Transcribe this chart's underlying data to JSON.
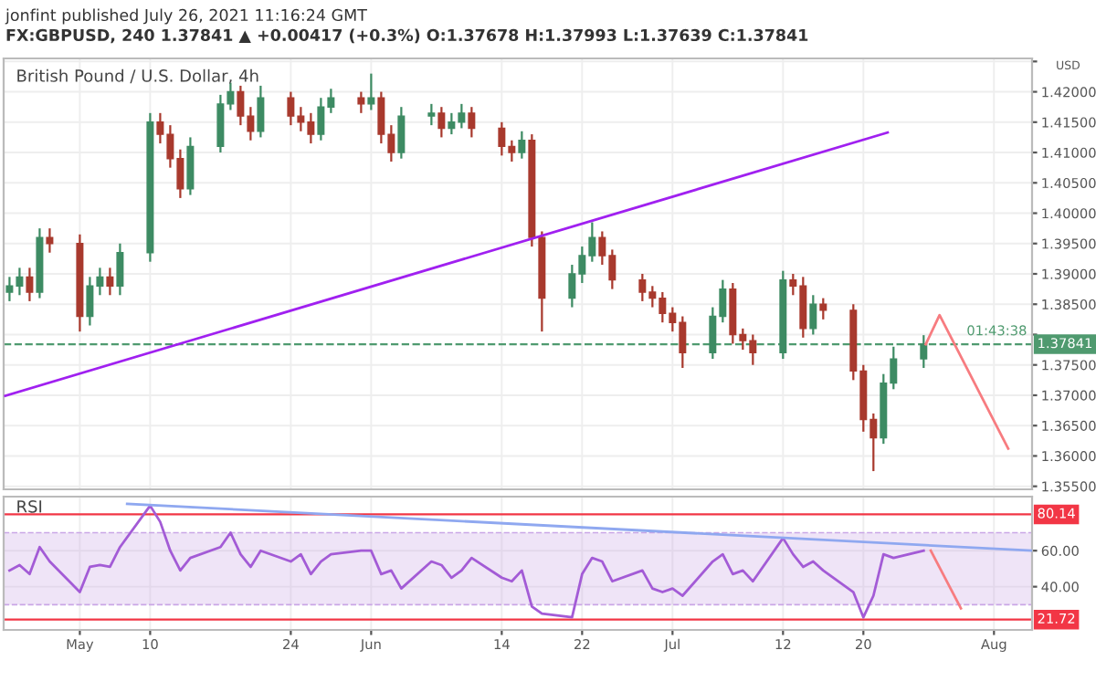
{
  "chart_data": [
    {
      "type": "candlestick",
      "title": "British Pound / U.S. Dollar, 4h",
      "annotations": [
        "jonfint published July 26, 2021 11:16:24 GMT",
        "FX:GBPUSD, 240 1.37841 ▲ +0.00417 (+0.3%) O:1.37678 H:1.37993 L:1.37639 C:1.37841",
        "USD",
        "01:43:38"
      ],
      "x": [
        "2021-04-26",
        "2021-04-27",
        "2021-04-28",
        "2021-04-29",
        "2021-04-30",
        "2021-05-03",
        "2021-05-04",
        "2021-05-05",
        "2021-05-06",
        "2021-05-07",
        "2021-05-10",
        "2021-05-11",
        "2021-05-12",
        "2021-05-13",
        "2021-05-14",
        "2021-05-17",
        "2021-05-18",
        "2021-05-19",
        "2021-05-20",
        "2021-05-21",
        "2021-05-24",
        "2021-05-25",
        "2021-05-26",
        "2021-05-27",
        "2021-05-28",
        "2021-05-31",
        "2021-06-01",
        "2021-06-02",
        "2021-06-03",
        "2021-06-04",
        "2021-06-07",
        "2021-06-08",
        "2021-06-09",
        "2021-06-10",
        "2021-06-11",
        "2021-06-14",
        "2021-06-15",
        "2021-06-16",
        "2021-06-17",
        "2021-06-18",
        "2021-06-21",
        "2021-06-22",
        "2021-06-23",
        "2021-06-24",
        "2021-06-25",
        "2021-06-28",
        "2021-06-29",
        "2021-06-30",
        "2021-07-01",
        "2021-07-02",
        "2021-07-05",
        "2021-07-06",
        "2021-07-07",
        "2021-07-08",
        "2021-07-09",
        "2021-07-12",
        "2021-07-13",
        "2021-07-14",
        "2021-07-15",
        "2021-07-16",
        "2021-07-19",
        "2021-07-20",
        "2021-07-21",
        "2021-07-22",
        "2021-07-23",
        "2021-07-26"
      ],
      "ohlc": [
        [
          1.387,
          1.3895,
          1.3855,
          1.388
        ],
        [
          1.388,
          1.391,
          1.3865,
          1.3895
        ],
        [
          1.3895,
          1.391,
          1.3855,
          1.387
        ],
        [
          1.387,
          1.3975,
          1.386,
          1.396
        ],
        [
          1.396,
          1.3975,
          1.3935,
          1.395
        ],
        [
          1.395,
          1.3965,
          1.3805,
          1.383
        ],
        [
          1.383,
          1.3895,
          1.3815,
          1.388
        ],
        [
          1.388,
          1.391,
          1.3865,
          1.3895
        ],
        [
          1.3895,
          1.391,
          1.3865,
          1.388
        ],
        [
          1.388,
          1.395,
          1.3865,
          1.3935
        ],
        [
          1.3935,
          1.4165,
          1.392,
          1.415
        ],
        [
          1.415,
          1.4165,
          1.4115,
          1.413
        ],
        [
          1.413,
          1.4145,
          1.4075,
          1.409
        ],
        [
          1.409,
          1.4105,
          1.4025,
          1.404
        ],
        [
          1.404,
          1.4125,
          1.403,
          1.411
        ],
        [
          1.411,
          1.4195,
          1.41,
          1.418
        ],
        [
          1.418,
          1.4215,
          1.417,
          1.42
        ],
        [
          1.42,
          1.421,
          1.4145,
          1.416
        ],
        [
          1.416,
          1.4175,
          1.412,
          1.4135
        ],
        [
          1.4135,
          1.421,
          1.4125,
          1.419
        ],
        [
          1.419,
          1.42,
          1.4145,
          1.416
        ],
        [
          1.416,
          1.4175,
          1.4135,
          1.415
        ],
        [
          1.415,
          1.4165,
          1.4115,
          1.413
        ],
        [
          1.413,
          1.419,
          1.412,
          1.4175
        ],
        [
          1.4175,
          1.4205,
          1.4165,
          1.419
        ],
        [
          1.419,
          1.42,
          1.4165,
          1.418
        ],
        [
          1.418,
          1.423,
          1.417,
          1.419
        ],
        [
          1.419,
          1.42,
          1.4115,
          1.413
        ],
        [
          1.413,
          1.4145,
          1.4085,
          1.41
        ],
        [
          1.41,
          1.4175,
          1.409,
          1.416
        ],
        [
          1.416,
          1.418,
          1.4145,
          1.4165
        ],
        [
          1.4165,
          1.4175,
          1.4125,
          1.414
        ],
        [
          1.414,
          1.4165,
          1.413,
          1.415
        ],
        [
          1.415,
          1.418,
          1.414,
          1.4165
        ],
        [
          1.4165,
          1.4175,
          1.4125,
          1.414
        ],
        [
          1.414,
          1.415,
          1.4095,
          1.411
        ],
        [
          1.411,
          1.412,
          1.4085,
          1.41
        ],
        [
          1.41,
          1.4135,
          1.409,
          1.412
        ],
        [
          1.412,
          1.413,
          1.3945,
          1.396
        ],
        [
          1.396,
          1.397,
          1.3805,
          1.386
        ],
        [
          1.386,
          1.3915,
          1.3845,
          1.39
        ],
        [
          1.39,
          1.3945,
          1.3885,
          1.393
        ],
        [
          1.393,
          1.3985,
          1.392,
          1.396
        ],
        [
          1.396,
          1.397,
          1.3915,
          1.393
        ],
        [
          1.393,
          1.394,
          1.3875,
          1.389
        ],
        [
          1.389,
          1.39,
          1.3855,
          1.387
        ],
        [
          1.387,
          1.388,
          1.3845,
          1.386
        ],
        [
          1.386,
          1.387,
          1.382,
          1.3835
        ],
        [
          1.3835,
          1.3845,
          1.3805,
          1.382
        ],
        [
          1.382,
          1.383,
          1.3745,
          1.377
        ],
        [
          1.377,
          1.3845,
          1.376,
          1.383
        ],
        [
          1.383,
          1.389,
          1.382,
          1.3875
        ],
        [
          1.3875,
          1.3885,
          1.3785,
          1.38
        ],
        [
          1.38,
          1.381,
          1.3775,
          1.379
        ],
        [
          1.379,
          1.38,
          1.375,
          1.377
        ],
        [
          1.377,
          1.3905,
          1.376,
          1.389
        ],
        [
          1.389,
          1.39,
          1.3865,
          1.388
        ],
        [
          1.388,
          1.3895,
          1.3795,
          1.381
        ],
        [
          1.381,
          1.3865,
          1.38,
          1.385
        ],
        [
          1.385,
          1.386,
          1.3825,
          1.384
        ],
        [
          1.384,
          1.385,
          1.3725,
          1.374
        ],
        [
          1.374,
          1.375,
          1.364,
          1.366
        ],
        [
          1.366,
          1.367,
          1.3575,
          1.363
        ],
        [
          1.363,
          1.3735,
          1.362,
          1.372
        ],
        [
          1.372,
          1.378,
          1.371,
          1.376
        ],
        [
          1.376,
          1.3799,
          1.3745,
          1.37841
        ]
      ],
      "colors": [
        "#3d8b63",
        "#3d8b63",
        "#a8392d",
        "#3d8b63",
        "#a8392d",
        "#a8392d",
        "#3d8b63",
        "#3d8b63",
        "#a8392d",
        "#3d8b63",
        "#3d8b63",
        "#a8392d",
        "#a8392d",
        "#a8392d",
        "#3d8b63",
        "#3d8b63",
        "#3d8b63",
        "#a8392d",
        "#a8392d",
        "#3d8b63",
        "#a8392d",
        "#a8392d",
        "#a8392d",
        "#3d8b63",
        "#3d8b63",
        "#a8392d",
        "#3d8b63",
        "#a8392d",
        "#a8392d",
        "#3d8b63",
        "#3d8b63",
        "#a8392d",
        "#3d8b63",
        "#3d8b63",
        "#a8392d",
        "#a8392d",
        "#a8392d",
        "#3d8b63",
        "#a8392d",
        "#a8392d",
        "#3d8b63",
        "#3d8b63",
        "#3d8b63",
        "#a8392d",
        "#a8392d",
        "#a8392d",
        "#a8392d",
        "#a8392d",
        "#a8392d",
        "#a8392d",
        "#3d8b63",
        "#3d8b63",
        "#a8392d",
        "#a8392d",
        "#a8392d",
        "#3d8b63",
        "#a8392d",
        "#a8392d",
        "#3d8b63",
        "#a8392d",
        "#a8392d",
        "#a8392d",
        "#a8392d",
        "#3d8b63",
        "#3d8b63",
        "#3d8b63"
      ],
      "series": [
        {
          "type": "line",
          "color": "#a020f0",
          "x": [
            "2021-04-25T14:00",
            "2021-07-22T10:00"
          ],
          "values": [
            1.3699,
            1.4133
          ]
        },
        {
          "type": "line",
          "color": "#f77c80",
          "x": [
            "2021-07-26T05:00",
            "2021-07-27T14:00",
            "2021-08-03T10:00"
          ],
          "values": [
            1.3784,
            1.3832,
            1.3612
          ]
        }
      ],
      "ref_lines": [
        {
          "axis": "y",
          "value": 1.37841,
          "label": "1.37841",
          "color": "#4f9a6f",
          "line_style": "dashed"
        }
      ],
      "xlim": [
        "2021-04-25T10:00",
        "2021-08-05T19:00"
      ],
      "ylim": [
        1.3545,
        1.4255
      ],
      "xticks": [
        {
          "value": "2021-05-03",
          "label": null
        },
        {
          "value": "2021-05-10",
          "label": null
        },
        {
          "value": "2021-05-24",
          "label": null
        },
        {
          "value": "2021-06-01",
          "label": null
        },
        {
          "value": "2021-06-14",
          "label": null
        },
        {
          "value": "2021-06-22",
          "label": null
        },
        {
          "value": "2021-07-01",
          "label": null
        },
        {
          "value": "2021-07-12",
          "label": null
        },
        {
          "value": "2021-07-20",
          "label": null
        },
        {
          "value": "2021-08-02",
          "label": null
        }
      ],
      "yticks": [
        {
          "value": 1.355,
          "label": "1.35500"
        },
        {
          "value": 1.36,
          "label": "1.36000"
        },
        {
          "value": 1.365,
          "label": "1.36500"
        },
        {
          "value": 1.37,
          "label": "1.37000"
        },
        {
          "value": 1.375,
          "label": "1.37500"
        },
        {
          "value": 1.38,
          "label": null
        },
        {
          "value": 1.385,
          "label": "1.38500"
        },
        {
          "value": 1.39,
          "label": "1.39000"
        },
        {
          "value": 1.395,
          "label": "1.39500"
        },
        {
          "value": 1.4,
          "label": "1.40000"
        },
        {
          "value": 1.405,
          "label": "1.40500"
        },
        {
          "value": 1.41,
          "label": "1.41000"
        },
        {
          "value": 1.415,
          "label": "1.41500"
        },
        {
          "value": 1.42,
          "label": "1.42000"
        },
        {
          "value": 1.425,
          "label": null
        }
      ],
      "tick_labels": "y",
      "grid": true
    },
    {
      "type": "line",
      "title": "RSI",
      "series": [
        {
          "color": "#a35bd6",
          "x": [
            "2021-04-26",
            "2021-04-27",
            "2021-04-28",
            "2021-04-29",
            "2021-04-30",
            "2021-05-03",
            "2021-05-04",
            "2021-05-05",
            "2021-05-06",
            "2021-05-07",
            "2021-05-10",
            "2021-05-11",
            "2021-05-12",
            "2021-05-13",
            "2021-05-14",
            "2021-05-17",
            "2021-05-18",
            "2021-05-19",
            "2021-05-20",
            "2021-05-21",
            "2021-05-24",
            "2021-05-25",
            "2021-05-26",
            "2021-05-27",
            "2021-05-28",
            "2021-05-31",
            "2021-06-01",
            "2021-06-02",
            "2021-06-03",
            "2021-06-04",
            "2021-06-07",
            "2021-06-08",
            "2021-06-09",
            "2021-06-10",
            "2021-06-11",
            "2021-06-14",
            "2021-06-15",
            "2021-06-16",
            "2021-06-17",
            "2021-06-18",
            "2021-06-21",
            "2021-06-22",
            "2021-06-23",
            "2021-06-24",
            "2021-06-25",
            "2021-06-28",
            "2021-06-29",
            "2021-06-30",
            "2021-07-01",
            "2021-07-02",
            "2021-07-05",
            "2021-07-06",
            "2021-07-07",
            "2021-07-08",
            "2021-07-09",
            "2021-07-12",
            "2021-07-13",
            "2021-07-14",
            "2021-07-15",
            "2021-07-16",
            "2021-07-19",
            "2021-07-20",
            "2021-07-21",
            "2021-07-22",
            "2021-07-23",
            "2021-07-26"
          ],
          "values": [
            49,
            52,
            47,
            62,
            54,
            37,
            51,
            52,
            51,
            62,
            85,
            76,
            60,
            49,
            56,
            62,
            70,
            58,
            51,
            60,
            54,
            58,
            47,
            54,
            58,
            60,
            60,
            47,
            49,
            39,
            54,
            52,
            45,
            49,
            56,
            45,
            43,
            49,
            29,
            25,
            23,
            47,
            56,
            54,
            43,
            49,
            39,
            37,
            39,
            35,
            54,
            58,
            47,
            49,
            43,
            67,
            58,
            51,
            54,
            49,
            37,
            23,
            35,
            58,
            56,
            60
          ]
        },
        {
          "color": "#8fa8f0",
          "x": [
            "2021-05-07T17:00",
            "2021-08-05T19:00"
          ],
          "values": [
            86,
            60
          ]
        },
        {
          "color": "#f77c80",
          "x": [
            "2021-07-26T17:00",
            "2021-07-29T17:00"
          ],
          "values": [
            60,
            28
          ]
        }
      ],
      "ref_lines": [
        {
          "axis": "y",
          "value": 80.14,
          "label": "80.14",
          "color": "#f23645",
          "line_style": "solid"
        },
        {
          "axis": "y",
          "value": 21.72,
          "label": "21.72",
          "color": "#f23645",
          "line_style": "solid"
        },
        {
          "axis": "y",
          "value": 70,
          "color": "#c9a6e6",
          "line_style": "dashed"
        },
        {
          "axis": "y",
          "value": 30,
          "color": "#c9a6e6",
          "line_style": "dashed"
        }
      ],
      "bands": [
        {
          "axis": "y",
          "from": 30,
          "to": 70,
          "color": "#c9a6e6"
        }
      ],
      "xlim": [
        "2021-04-25T10:00",
        "2021-08-05T19:00"
      ],
      "ylim": [
        16,
        90
      ],
      "xticks": [
        {
          "value": "2021-05-03",
          "label": "May"
        },
        {
          "value": "2021-05-10",
          "label": "10"
        },
        {
          "value": "2021-05-24",
          "label": "24"
        },
        {
          "value": "2021-06-01",
          "label": "Jun"
        },
        {
          "value": "2021-06-14",
          "label": "14"
        },
        {
          "value": "2021-06-22",
          "label": "22"
        },
        {
          "value": "2021-07-01",
          "label": "Jul"
        },
        {
          "value": "2021-07-12",
          "label": "12"
        },
        {
          "value": "2021-07-20",
          "label": "20"
        },
        {
          "value": "2021-08-02",
          "label": "Aug"
        }
      ],
      "yticks": [
        {
          "value": 40,
          "label": "40.00"
        },
        {
          "value": 60,
          "label": "60.00"
        }
      ],
      "grid": true
    }
  ]
}
